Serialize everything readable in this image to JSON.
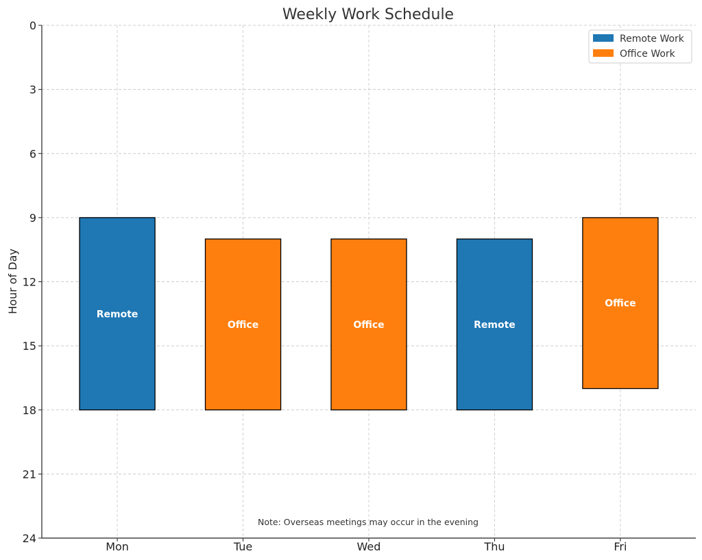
{
  "chart_data": {
    "type": "bar",
    "title": "Weekly Work Schedule",
    "xlabel": "",
    "ylabel": "Hour of Day",
    "categories": [
      "Mon",
      "Tue",
      "Wed",
      "Thu",
      "Fri"
    ],
    "ylim": [
      24,
      0
    ],
    "y_inverted": true,
    "yticks": [
      0,
      3,
      6,
      9,
      12,
      15,
      18,
      21,
      24
    ],
    "grid": true,
    "legend_position": "top-right",
    "series": [
      {
        "name": "Remote Work",
        "color": "#1f77b4"
      },
      {
        "name": "Office Work",
        "color": "#ff7f0e"
      }
    ],
    "bars": [
      {
        "day": "Mon",
        "start": 9,
        "end": 18,
        "series": "Remote Work",
        "label": "Remote"
      },
      {
        "day": "Tue",
        "start": 10,
        "end": 18,
        "series": "Office Work",
        "label": "Office"
      },
      {
        "day": "Wed",
        "start": 10,
        "end": 18,
        "series": "Office Work",
        "label": "Office"
      },
      {
        "day": "Thu",
        "start": 10,
        "end": 18,
        "series": "Remote Work",
        "label": "Remote"
      },
      {
        "day": "Fri",
        "start": 9,
        "end": 17,
        "series": "Office Work",
        "label": "Office"
      }
    ],
    "annotation": "Note: Overseas meetings may occur in the evening"
  }
}
